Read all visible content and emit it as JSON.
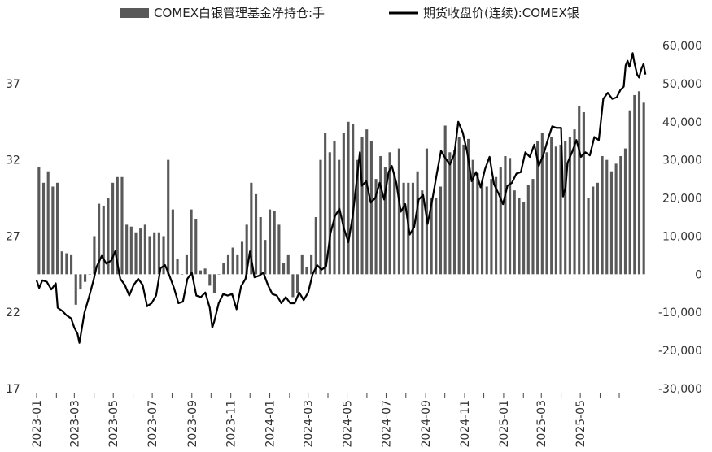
{
  "chart_data": {
    "type": "bar+line",
    "legend": {
      "placement": "top",
      "bar_label": "COMEX白银管理基金净持仓:手",
      "line_label": "期货收盘价(连续):COMEX银"
    },
    "left_axis": {
      "ylim": [
        17,
        39.5
      ],
      "ticks": [
        "17",
        "22",
        "27",
        "32",
        "37"
      ],
      "tick_values": [
        17,
        22,
        27,
        32,
        37
      ]
    },
    "right_axis": {
      "ylim": [
        -30000,
        60000
      ],
      "ticks": [
        "-30,000",
        "-20,000",
        "-10,000",
        "0",
        "10,000",
        "20,000",
        "30,000",
        "40,000",
        "50,000",
        "60,000"
      ],
      "tick_values": [
        -30000,
        -20000,
        -10000,
        0,
        10000,
        20000,
        30000,
        40000,
        50000,
        60000
      ]
    },
    "x_axis": {
      "start": "2023-01",
      "end": "2025-07",
      "tick_labels": [
        "2023-01",
        "2023-03",
        "2023-05",
        "2023-07",
        "2023-09",
        "2023-11",
        "2024-01",
        "2024-03",
        "2024-05",
        "2024-07",
        "2024-09",
        "2024-11",
        "2025-01",
        "2025-03",
        "2025-05"
      ]
    },
    "series": [
      {
        "name": "COMEX白银管理基金净持仓:手",
        "kind": "bar",
        "axis": "right",
        "color": "#595959",
        "frequency": "weekly",
        "values": [
          28000,
          24000,
          27000,
          23000,
          24000,
          6000,
          5500,
          5000,
          -8000,
          -4000,
          -2000,
          0,
          10000,
          18500,
          18000,
          20000,
          24000,
          25500,
          25500,
          13000,
          12500,
          11000,
          12000,
          13000,
          10000,
          11000,
          11000,
          10000,
          30000,
          17000,
          4000,
          0,
          5000,
          17000,
          14500,
          1000,
          1500,
          -3000,
          -5000,
          0,
          3000,
          5000,
          7000,
          5000,
          8500,
          13000,
          24000,
          21000,
          15000,
          9000,
          17000,
          16500,
          13000,
          3000,
          5000,
          -6000,
          -5000,
          5000,
          2000,
          5000,
          15000,
          30000,
          37000,
          32000,
          35000,
          30000,
          37000,
          40000,
          39500,
          30000,
          36000,
          38000,
          35000,
          25000,
          31000,
          28000,
          32000,
          26000,
          33000,
          24000,
          24000,
          24000,
          27000,
          22000,
          33000,
          20000,
          20000,
          23000,
          39000,
          32000,
          32500,
          36000,
          34000,
          35500,
          30000,
          26500,
          24000,
          23000,
          25000,
          25500,
          28000,
          31000,
          30500,
          22000,
          20000,
          19000,
          23500,
          25000,
          35000,
          37000,
          32000,
          36000,
          33500,
          34000,
          35000,
          36000,
          38000,
          44000,
          42500,
          20000,
          23000,
          24000,
          31000,
          30000,
          27000,
          29000,
          31000,
          33000,
          43000,
          47000,
          48000,
          45000
        ]
      },
      {
        "name": "期货收盘价(连续):COMEX银",
        "kind": "line",
        "axis": "left",
        "color": "#000000",
        "frequency": "daily (approx.)",
        "points": [
          [
            "2023-01-01",
            24.1
          ],
          [
            "2023-01-05",
            23.6
          ],
          [
            "2023-01-10",
            24.1
          ],
          [
            "2023-01-17",
            24.0
          ],
          [
            "2023-01-24",
            23.5
          ],
          [
            "2023-01-31",
            23.9
          ],
          [
            "2023-02-03",
            22.3
          ],
          [
            "2023-02-10",
            22.1
          ],
          [
            "2023-02-17",
            21.8
          ],
          [
            "2023-02-24",
            21.6
          ],
          [
            "2023-03-01",
            21.0
          ],
          [
            "2023-03-06",
            20.6
          ],
          [
            "2023-03-09",
            20.0
          ],
          [
            "2023-03-13",
            21.0
          ],
          [
            "2023-03-17",
            22.0
          ],
          [
            "2023-03-24",
            23.0
          ],
          [
            "2023-03-31",
            24.1
          ],
          [
            "2023-04-05",
            25.0
          ],
          [
            "2023-04-13",
            25.7
          ],
          [
            "2023-04-20",
            25.2
          ],
          [
            "2023-04-28",
            25.4
          ],
          [
            "2023-05-04",
            26.0
          ],
          [
            "2023-05-12",
            24.2
          ],
          [
            "2023-05-19",
            23.8
          ],
          [
            "2023-05-26",
            23.1
          ],
          [
            "2023-06-02",
            23.8
          ],
          [
            "2023-06-09",
            24.2
          ],
          [
            "2023-06-16",
            23.8
          ],
          [
            "2023-06-23",
            22.4
          ],
          [
            "2023-06-30",
            22.6
          ],
          [
            "2023-07-07",
            23.1
          ],
          [
            "2023-07-14",
            24.9
          ],
          [
            "2023-07-21",
            25.1
          ],
          [
            "2023-07-28",
            24.4
          ],
          [
            "2023-08-04",
            23.6
          ],
          [
            "2023-08-11",
            22.6
          ],
          [
            "2023-08-18",
            22.7
          ],
          [
            "2023-08-25",
            24.2
          ],
          [
            "2023-09-01",
            24.6
          ],
          [
            "2023-09-08",
            23.1
          ],
          [
            "2023-09-15",
            23.0
          ],
          [
            "2023-09-22",
            23.3
          ],
          [
            "2023-09-29",
            22.3
          ],
          [
            "2023-10-03",
            21.0
          ],
          [
            "2023-10-06",
            21.4
          ],
          [
            "2023-10-13",
            22.6
          ],
          [
            "2023-10-20",
            23.2
          ],
          [
            "2023-10-27",
            23.1
          ],
          [
            "2023-11-03",
            23.2
          ],
          [
            "2023-11-10",
            22.2
          ],
          [
            "2023-11-17",
            23.7
          ],
          [
            "2023-11-24",
            24.2
          ],
          [
            "2023-12-01",
            26.0
          ],
          [
            "2023-12-08",
            24.3
          ],
          [
            "2023-12-15",
            24.4
          ],
          [
            "2023-12-22",
            24.6
          ],
          [
            "2023-12-29",
            23.8
          ],
          [
            "2024-01-05",
            23.2
          ],
          [
            "2024-01-12",
            23.1
          ],
          [
            "2024-01-19",
            22.6
          ],
          [
            "2024-01-26",
            23.0
          ],
          [
            "2024-02-02",
            22.6
          ],
          [
            "2024-02-09",
            22.6
          ],
          [
            "2024-02-16",
            23.3
          ],
          [
            "2024-02-23",
            22.8
          ],
          [
            "2024-03-01",
            23.3
          ],
          [
            "2024-03-08",
            24.5
          ],
          [
            "2024-03-15",
            25.1
          ],
          [
            "2024-03-22",
            24.8
          ],
          [
            "2024-03-29",
            25.0
          ],
          [
            "2024-04-05",
            27.2
          ],
          [
            "2024-04-12",
            28.3
          ],
          [
            "2024-04-19",
            28.8
          ],
          [
            "2024-04-26",
            27.5
          ],
          [
            "2024-05-03",
            26.6
          ],
          [
            "2024-05-10",
            28.4
          ],
          [
            "2024-05-17",
            31.0
          ],
          [
            "2024-05-21",
            32.5
          ],
          [
            "2024-05-24",
            30.3
          ],
          [
            "2024-05-31",
            30.6
          ],
          [
            "2024-06-07",
            29.2
          ],
          [
            "2024-06-14",
            29.5
          ],
          [
            "2024-06-21",
            30.5
          ],
          [
            "2024-06-28",
            29.4
          ],
          [
            "2024-07-05",
            31.2
          ],
          [
            "2024-07-10",
            31.6
          ],
          [
            "2024-07-17",
            30.5
          ],
          [
            "2024-07-24",
            28.6
          ],
          [
            "2024-07-31",
            29.1
          ],
          [
            "2024-08-07",
            27.1
          ],
          [
            "2024-08-14",
            27.6
          ],
          [
            "2024-08-21",
            29.4
          ],
          [
            "2024-08-28",
            29.7
          ],
          [
            "2024-09-04",
            27.8
          ],
          [
            "2024-09-11",
            29.3
          ],
          [
            "2024-09-18",
            31.0
          ],
          [
            "2024-09-25",
            32.6
          ],
          [
            "2024-10-02",
            32.1
          ],
          [
            "2024-10-09",
            31.7
          ],
          [
            "2024-10-16",
            32.4
          ],
          [
            "2024-10-22",
            34.5
          ],
          [
            "2024-10-29",
            33.8
          ],
          [
            "2024-11-05",
            32.5
          ],
          [
            "2024-11-12",
            30.6
          ],
          [
            "2024-11-19",
            31.2
          ],
          [
            "2024-11-26",
            30.2
          ],
          [
            "2024-12-03",
            31.4
          ],
          [
            "2024-12-10",
            32.2
          ],
          [
            "2024-12-17",
            30.4
          ],
          [
            "2024-12-24",
            29.8
          ],
          [
            "2024-12-31",
            29.1
          ],
          [
            "2025-01-07",
            30.3
          ],
          [
            "2025-01-14",
            30.5
          ],
          [
            "2025-01-21",
            31.1
          ],
          [
            "2025-01-28",
            31.2
          ],
          [
            "2025-02-04",
            32.5
          ],
          [
            "2025-02-11",
            32.2
          ],
          [
            "2025-02-18",
            33.0
          ],
          [
            "2025-02-25",
            31.6
          ],
          [
            "2025-03-04",
            32.3
          ],
          [
            "2025-03-11",
            33.3
          ],
          [
            "2025-03-18",
            34.2
          ],
          [
            "2025-03-25",
            34.1
          ],
          [
            "2025-04-01",
            34.1
          ],
          [
            "2025-04-04",
            29.6
          ],
          [
            "2025-04-08",
            30.2
          ],
          [
            "2025-04-11",
            31.8
          ],
          [
            "2025-04-18",
            32.5
          ],
          [
            "2025-04-25",
            33.3
          ],
          [
            "2025-05-02",
            32.2
          ],
          [
            "2025-05-09",
            32.5
          ],
          [
            "2025-05-16",
            32.3
          ],
          [
            "2025-05-23",
            33.5
          ],
          [
            "2025-05-30",
            33.3
          ],
          [
            "2025-06-06",
            36.0
          ],
          [
            "2025-06-13",
            36.4
          ],
          [
            "2025-06-20",
            36.0
          ],
          [
            "2025-06-27",
            36.1
          ],
          [
            "2025-07-03",
            36.6
          ],
          [
            "2025-07-08",
            36.8
          ],
          [
            "2025-07-11",
            38.2
          ],
          [
            "2025-07-14",
            38.5
          ],
          [
            "2025-07-17",
            38.1
          ],
          [
            "2025-07-22",
            39.0
          ],
          [
            "2025-07-25",
            38.3
          ],
          [
            "2025-07-29",
            37.6
          ],
          [
            "2025-08-01",
            37.4
          ],
          [
            "2025-08-05",
            38.0
          ],
          [
            "2025-08-08",
            38.3
          ],
          [
            "2025-08-11",
            37.6
          ]
        ]
      }
    ]
  }
}
